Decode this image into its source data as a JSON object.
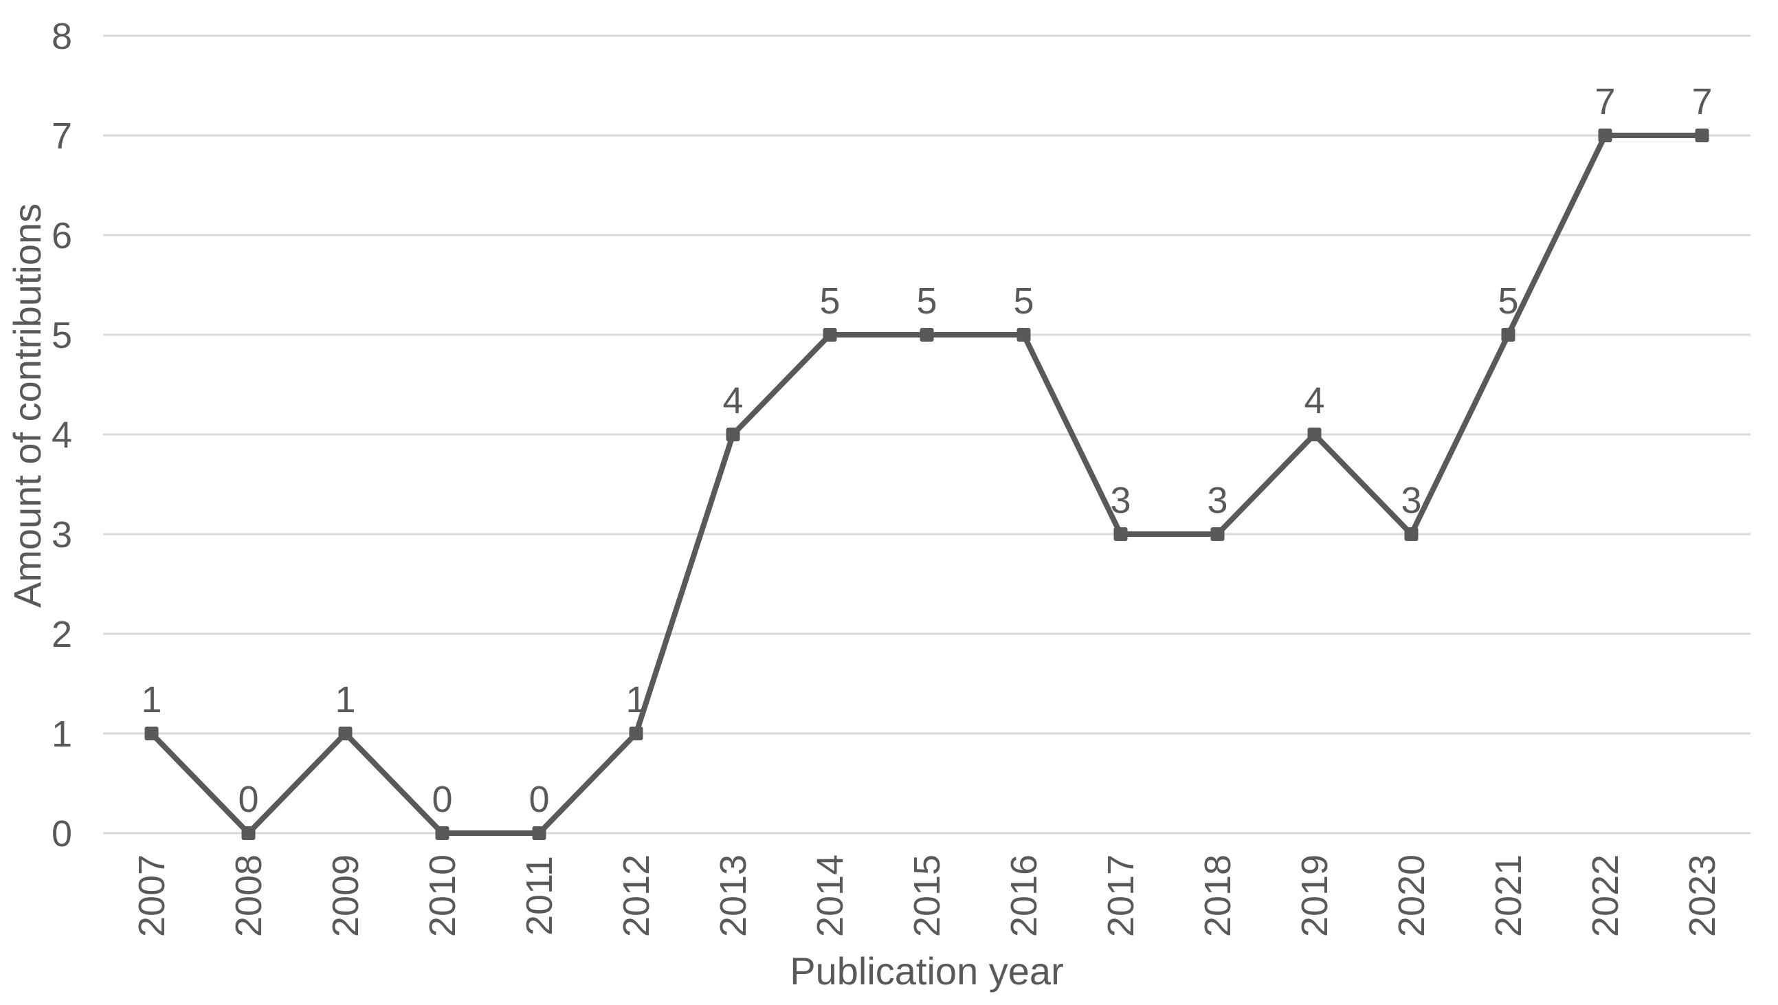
{
  "chart_data": {
    "type": "line",
    "title": "",
    "xlabel": "Publication year",
    "ylabel": "Amount of contributions",
    "categories": [
      "2007",
      "2008",
      "2009",
      "2010",
      "2011",
      "2012",
      "2013",
      "2014",
      "2015",
      "2016",
      "2017",
      "2018",
      "2019",
      "2020",
      "2021",
      "2022",
      "2023"
    ],
    "series": [
      {
        "name": "Amount of contributions",
        "values": [
          1,
          0,
          1,
          0,
          0,
          1,
          4,
          5,
          5,
          5,
          3,
          3,
          4,
          3,
          5,
          7,
          7
        ]
      }
    ],
    "ylim": [
      0,
      8
    ],
    "yticks": [
      0,
      1,
      2,
      3,
      4,
      5,
      6,
      7,
      8
    ],
    "grid": true,
    "legend_position": "none",
    "data_labels_position": "above",
    "marker_shape": "square",
    "x_tick_rotation_degrees": 90,
    "colors": {
      "line": "#595959",
      "marker": "#595959",
      "grid": "#d9d9d9",
      "text": "#595959",
      "background": "#ffffff"
    }
  }
}
